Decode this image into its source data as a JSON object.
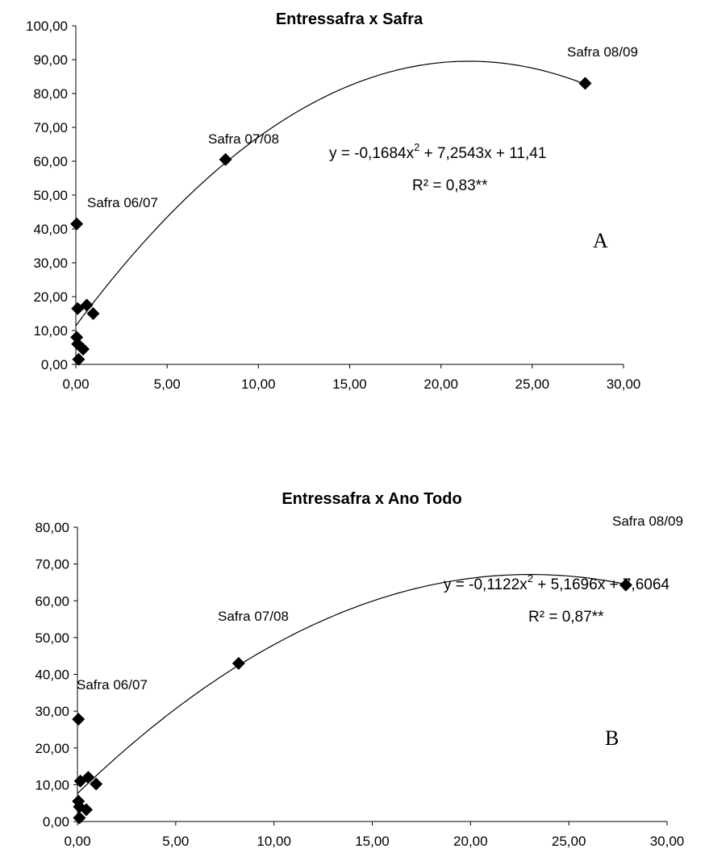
{
  "chart_data": [
    {
      "type": "scatter",
      "title": "Entressafra x Safra",
      "xlim": [
        0,
        30
      ],
      "ylim": [
        0,
        100
      ],
      "x_ticks": [
        "0,00",
        "5,00",
        "10,00",
        "15,00",
        "20,00",
        "25,00",
        "30,00"
      ],
      "y_ticks": [
        "0,00",
        "10,00",
        "20,00",
        "30,00",
        "40,00",
        "50,00",
        "60,00",
        "70,00",
        "80,00",
        "90,00",
        "100,00"
      ],
      "points": [
        {
          "x": 0.05,
          "y": 41.5
        },
        {
          "x": 0.1,
          "y": 16.5
        },
        {
          "x": 0.6,
          "y": 17.5
        },
        {
          "x": 0.95,
          "y": 15.0
        },
        {
          "x": 0.05,
          "y": 8.0
        },
        {
          "x": 0.1,
          "y": 6.0
        },
        {
          "x": 0.4,
          "y": 4.5
        },
        {
          "x": 0.15,
          "y": 1.5
        },
        {
          "x": 8.2,
          "y": 60.5
        },
        {
          "x": 27.9,
          "y": 83.0
        }
      ],
      "trendline": {
        "a": -0.1684,
        "b": 7.2543,
        "c": 11.41,
        "x_range": [
          0,
          27.9
        ]
      },
      "annotations": {
        "s0607": "Safra 06/07",
        "s0708": "Safra 07/08",
        "s0809": "Safra 08/09"
      },
      "equation": {
        "main": "y = -0,1684x",
        "sup": "2",
        "rest": " + 7,2543x + 11,41"
      },
      "r2": "R² = 0,83**",
      "panel_label": "A"
    },
    {
      "type": "scatter",
      "title": "Entressafra x Ano Todo",
      "xlim": [
        0,
        30
      ],
      "ylim": [
        0,
        80
      ],
      "x_ticks": [
        "0,00",
        "5,00",
        "10,00",
        "15,00",
        "20,00",
        "25,00",
        "30,00"
      ],
      "y_ticks": [
        "0,00",
        "10,00",
        "20,00",
        "30,00",
        "40,00",
        "50,00",
        "60,00",
        "70,00",
        "80,00"
      ],
      "points": [
        {
          "x": 0.05,
          "y": 27.8
        },
        {
          "x": 0.15,
          "y": 11.0
        },
        {
          "x": 0.55,
          "y": 12.0
        },
        {
          "x": 0.95,
          "y": 10.2
        },
        {
          "x": 0.05,
          "y": 5.5
        },
        {
          "x": 0.1,
          "y": 4.0
        },
        {
          "x": 0.45,
          "y": 3.2
        },
        {
          "x": 0.1,
          "y": 1.0
        },
        {
          "x": 8.2,
          "y": 43.0
        },
        {
          "x": 27.9,
          "y": 64.3
        }
      ],
      "trendline": {
        "a": -0.1122,
        "b": 5.1696,
        "c": 7.6064,
        "x_range": [
          0,
          27.9
        ]
      },
      "annotations": {
        "s0607": "Safra 06/07",
        "s0708": "Safra 07/08",
        "s0809": "Safra 08/09"
      },
      "equation": {
        "main": "y = -0,1122x",
        "sup": "2",
        "rest": " + 5,1696x + 7,6064"
      },
      "r2": "R² = 0,87**",
      "panel_label": "B"
    }
  ]
}
